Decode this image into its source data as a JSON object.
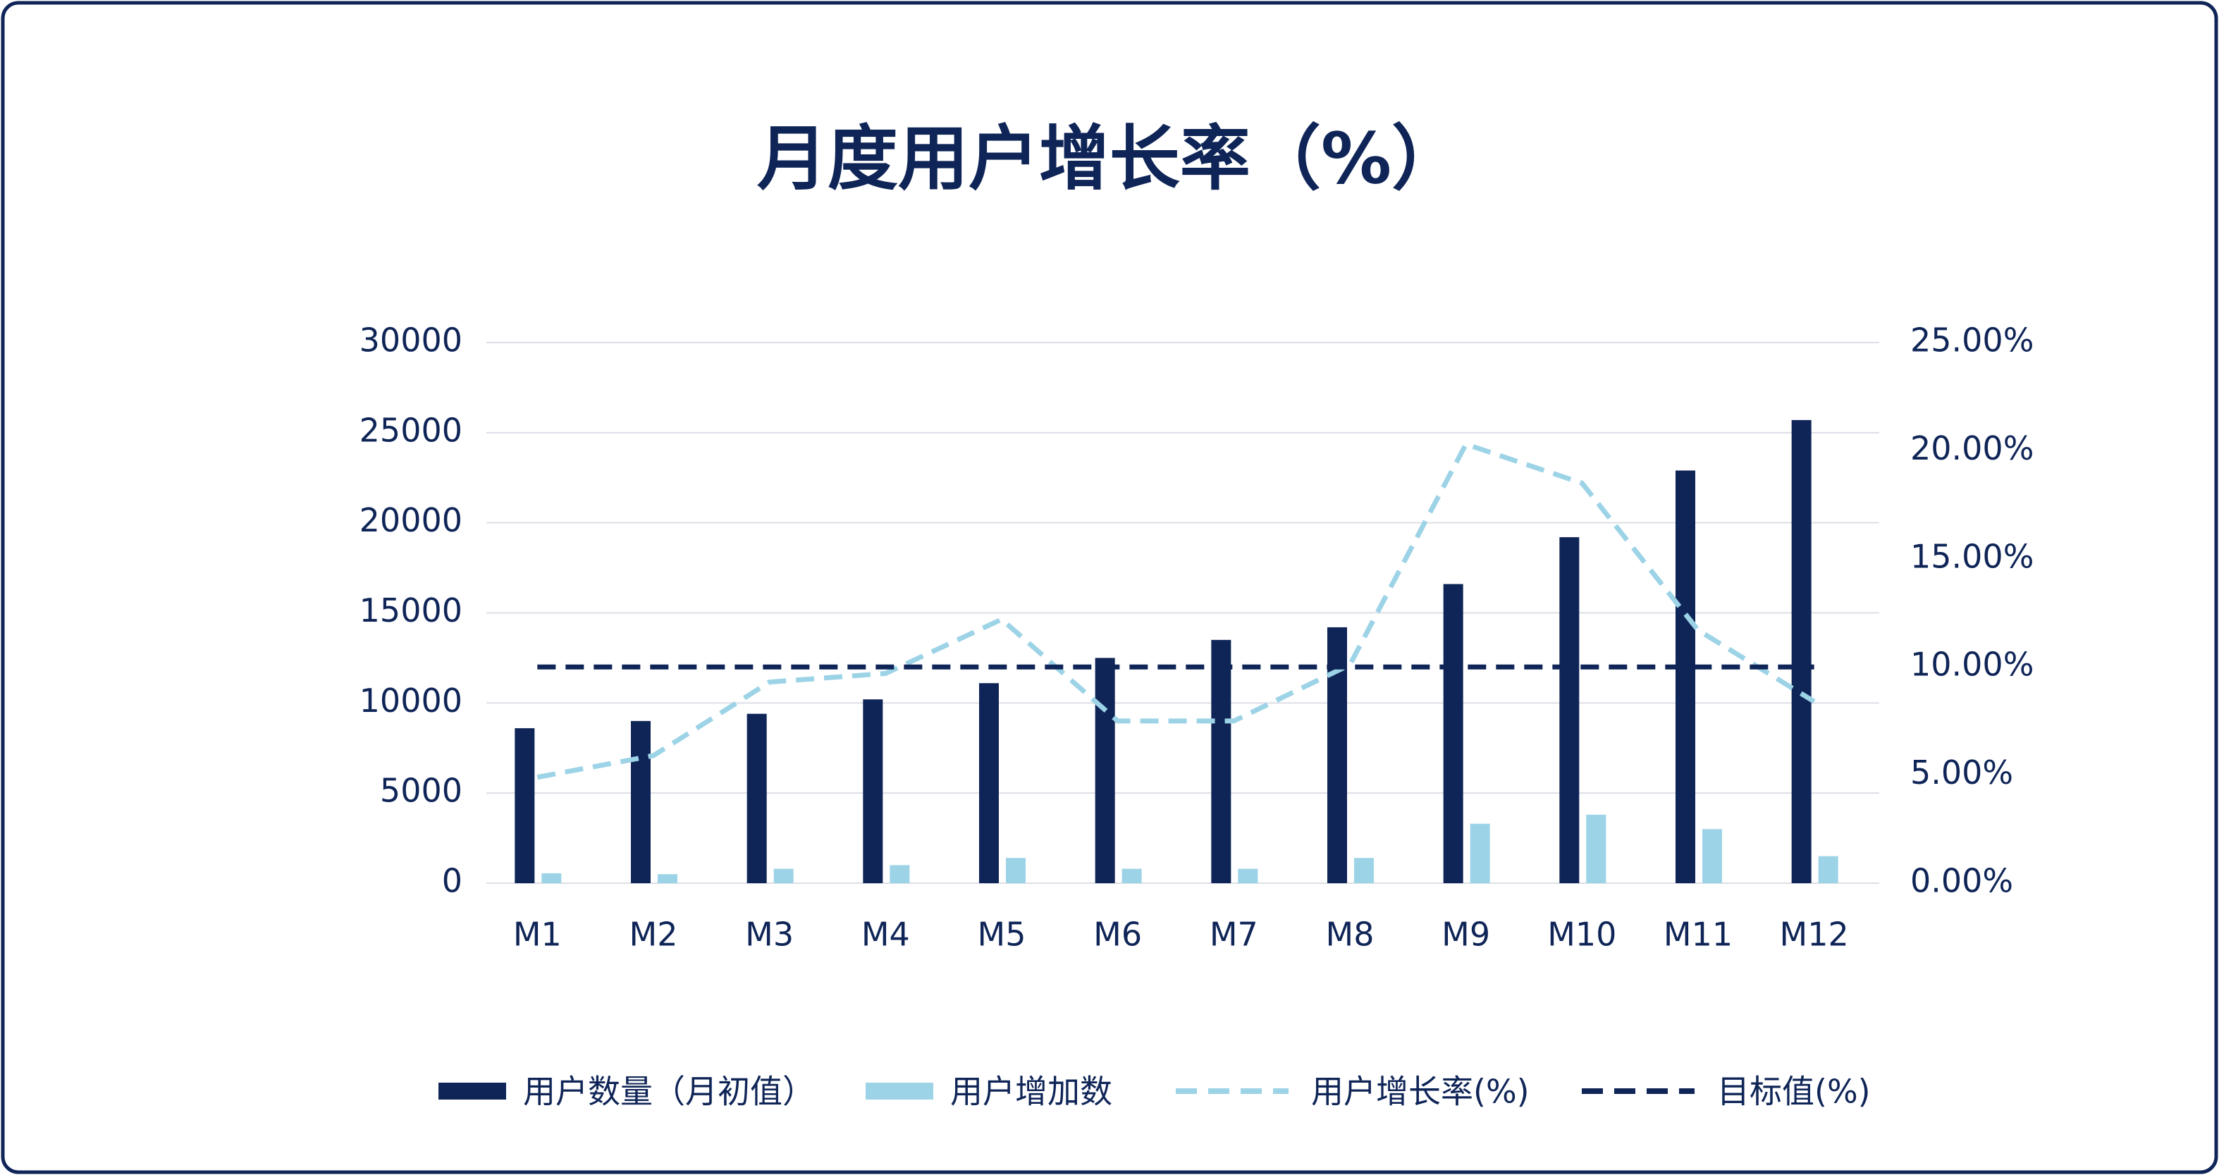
{
  "chart_data": {
    "type": "bar",
    "title": "月度用户增长率（%）",
    "categories": [
      "M1",
      "M2",
      "M3",
      "M4",
      "M5",
      "M6",
      "M7",
      "M8",
      "M9",
      "M10",
      "M11",
      "M12"
    ],
    "series": [
      {
        "name": "用户数量（月初值）",
        "type": "bar",
        "color": "#0f2557",
        "values": [
          8600,
          9000,
          9400,
          10200,
          11100,
          12500,
          13500,
          14200,
          16600,
          19200,
          22900,
          25700
        ]
      },
      {
        "name": "用户增加数",
        "type": "bar",
        "color": "#9dd3e6",
        "values": [
          550,
          500,
          800,
          1000,
          1400,
          800,
          800,
          1400,
          3300,
          3800,
          3000,
          1500
        ]
      },
      {
        "name": "用户增长率(%)",
        "type": "line",
        "axis": "y2",
        "dashed": true,
        "color": "#9dd3e6",
        "values": [
          4.9,
          5.9,
          9.3,
          9.7,
          12.2,
          7.5,
          7.5,
          10.1,
          20.3,
          18.5,
          11.7,
          8.4
        ]
      },
      {
        "name": "目标值(%)",
        "type": "line",
        "axis": "y2",
        "dashed": true,
        "color": "#0f2557",
        "values": [
          10,
          10,
          10,
          10,
          10,
          10,
          10,
          10,
          10,
          10,
          10,
          10
        ]
      }
    ],
    "ylim": [
      0,
      30000
    ],
    "yticks": [
      0,
      5000,
      10000,
      15000,
      20000,
      25000,
      30000
    ],
    "y2lim": [
      0,
      25
    ],
    "y2ticks": [
      {
        "value": 0,
        "label": "0.00%"
      },
      {
        "value": 5,
        "label": "5.00%"
      },
      {
        "value": 10,
        "label": "10.00%"
      },
      {
        "value": 15,
        "label": "15.00%"
      },
      {
        "value": 20,
        "label": "20.00%"
      },
      {
        "value": 25,
        "label": "25.00%"
      }
    ],
    "grid": true,
    "legend": "bottom"
  }
}
